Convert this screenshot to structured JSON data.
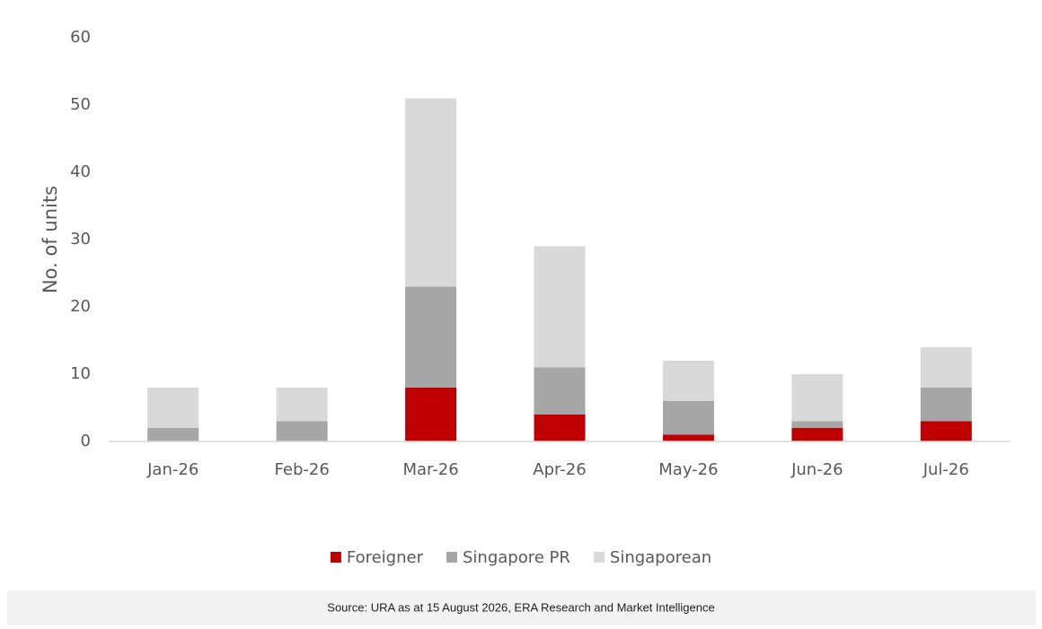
{
  "chart_data": {
    "type": "stacked_bar",
    "y_label": "No. of units",
    "categories": [
      "Jan-26",
      "Feb-26",
      "Mar-26",
      "Apr-26",
      "May-26",
      "Jun-26",
      "Jul-26"
    ],
    "series": [
      {
        "name": "Foreigner",
        "color": "#c00000",
        "values": [
          0,
          0,
          8,
          4,
          1,
          2,
          3
        ]
      },
      {
        "name": "Singapore PR",
        "color": "#a6a6a6",
        "values": [
          2,
          3,
          15,
          7,
          5,
          1,
          5
        ]
      },
      {
        "name": "Singaporean",
        "color": "#d9d9d9",
        "values": [
          6,
          5,
          28,
          18,
          6,
          7,
          6
        ]
      }
    ],
    "ylim": [
      0,
      60
    ],
    "yticks": [
      0,
      10,
      20,
      30,
      40,
      50,
      60
    ],
    "grid": false,
    "legend": "bottom",
    "source": "Source: URA as at 15 August 2026, ERA Research and Market Intelligence"
  }
}
